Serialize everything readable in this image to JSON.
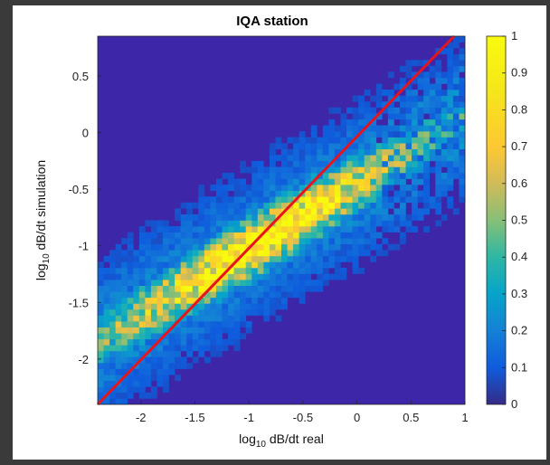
{
  "chart_data": {
    "type": "heatmap",
    "title": "IQA station",
    "xlabel": {
      "prefix": "log",
      "sub": "10",
      "suffix": " dB/dt real"
    },
    "ylabel": {
      "prefix": "log",
      "sub": "10",
      "suffix": " dB/dt simulation"
    },
    "xlim": [
      -2.4,
      1.0
    ],
    "ylim": [
      -2.4,
      0.85
    ],
    "xticks": [
      -2,
      -1.5,
      -1,
      -0.5,
      0,
      0.5,
      1
    ],
    "xtick_labels": [
      "-2",
      "-1.5",
      "-1",
      "-0.5",
      "0",
      "0.5",
      "1"
    ],
    "yticks": [
      0.5,
      0,
      -0.5,
      -1,
      -1.5,
      -2
    ],
    "ytick_labels": [
      "0.5",
      "0",
      "-0.5",
      "-1",
      "-1.5",
      "-2"
    ],
    "colorbar": {
      "range": [
        0,
        1
      ],
      "ticks": [
        1,
        0.9,
        0.8,
        0.7,
        0.6,
        0.5,
        0.4,
        0.3,
        0.2,
        0.1,
        0
      ],
      "tick_labels": [
        "1",
        "0.9",
        "0.8",
        "0.7",
        "0.6",
        "0.5",
        "0.4",
        "0.3",
        "0.2",
        "0.1",
        "0"
      ],
      "colormap": "parula"
    },
    "density_model": {
      "ridge_slope": 0.58,
      "ridge_intercept": -0.45,
      "spread": 0.26,
      "x_center": -0.9,
      "x_width": 1.15
    },
    "reference_line": {
      "x": [
        -2.4,
        0.9
      ],
      "y": [
        -2.4,
        0.85
      ],
      "color": "#e8141c"
    },
    "grid": false,
    "legend": "none",
    "background_color": "#3e26a8"
  }
}
